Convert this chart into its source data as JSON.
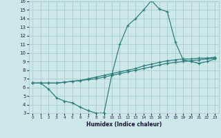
{
  "xlabel": "Humidex (Indice chaleur)",
  "bg_color": "#cce8e8",
  "grid_color": "#aacccc",
  "line_color": "#2e7d7d",
  "xlim": [
    -0.5,
    23.5
  ],
  "ylim": [
    3,
    16
  ],
  "xticks": [
    0,
    1,
    2,
    3,
    4,
    5,
    6,
    7,
    8,
    9,
    10,
    11,
    12,
    13,
    14,
    15,
    16,
    17,
    18,
    19,
    20,
    21,
    22,
    23
  ],
  "yticks": [
    3,
    4,
    5,
    6,
    7,
    8,
    9,
    10,
    11,
    12,
    13,
    14,
    15,
    16
  ],
  "lines": [
    {
      "x": [
        0,
        1,
        2,
        3,
        4,
        5,
        6,
        7,
        8,
        9,
        10,
        11,
        12,
        13,
        14,
        15,
        16,
        17,
        18,
        19,
        20,
        21,
        22,
        23
      ],
      "y": [
        6.5,
        6.5,
        6.5,
        6.5,
        6.6,
        6.7,
        6.8,
        6.9,
        7.0,
        7.2,
        7.4,
        7.6,
        7.8,
        8.0,
        8.2,
        8.4,
        8.6,
        8.8,
        8.9,
        9.0,
        9.1,
        9.2,
        9.3,
        9.4
      ]
    },
    {
      "x": [
        0,
        1,
        2,
        3,
        4,
        5,
        6,
        7,
        8,
        9,
        10,
        11,
        12,
        13,
        14,
        15,
        16,
        17,
        18,
        19,
        20,
        21,
        22,
        23
      ],
      "y": [
        6.5,
        6.5,
        6.5,
        6.5,
        6.6,
        6.7,
        6.8,
        7.0,
        7.2,
        7.4,
        7.6,
        7.8,
        8.0,
        8.2,
        8.5,
        8.7,
        8.9,
        9.1,
        9.2,
        9.3,
        9.3,
        9.4,
        9.4,
        9.5
      ]
    },
    {
      "x": [
        0,
        1,
        2,
        3,
        4,
        5,
        6,
        7,
        8,
        9,
        10,
        11,
        12,
        13,
        14,
        15,
        16,
        17,
        18,
        19,
        20,
        21,
        22,
        23
      ],
      "y": [
        6.5,
        6.5,
        5.8,
        4.8,
        4.4,
        4.2,
        3.7,
        3.3,
        3.0,
        3.0,
        7.5,
        11.0,
        13.2,
        14.0,
        15.0,
        16.1,
        15.1,
        14.8,
        11.3,
        9.2,
        9.0,
        8.8,
        9.0,
        9.3
      ]
    }
  ]
}
